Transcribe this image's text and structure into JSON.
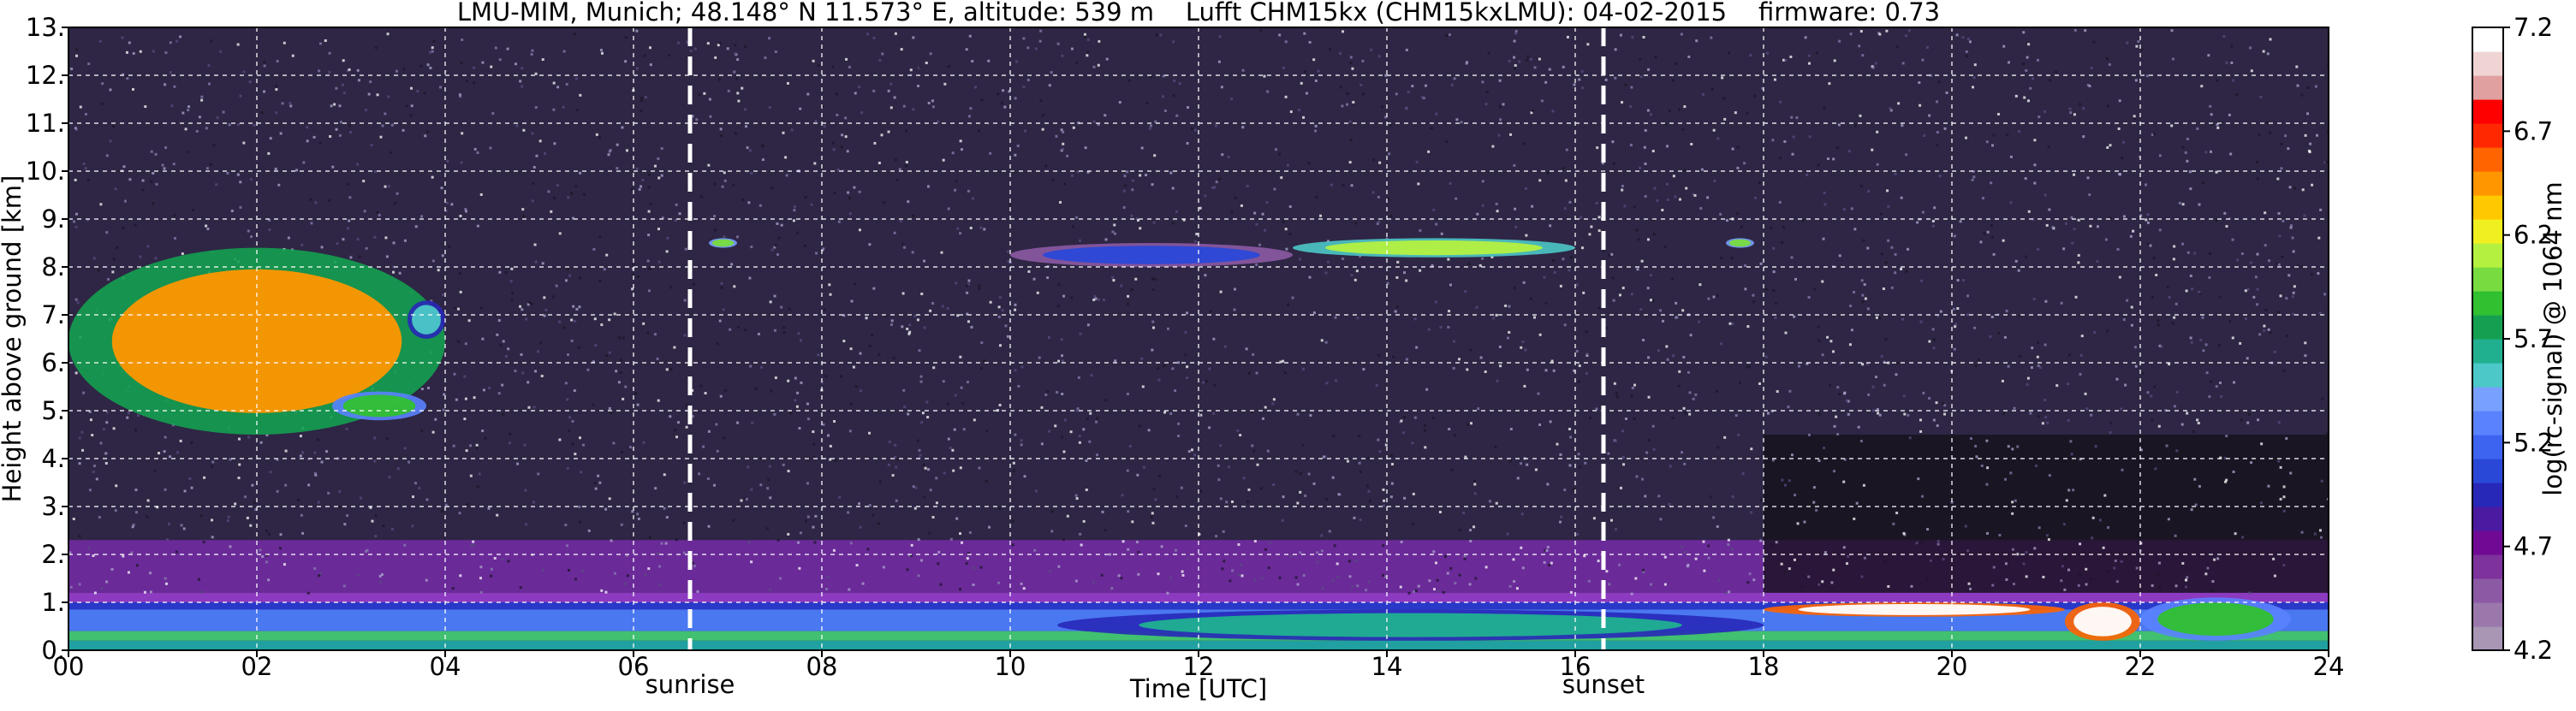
{
  "chart_data": {
    "type": "heatmap",
    "title": "LMU-MIM, Munich; 48.148° N 11.573° E, altitude: 539 m    Lufft CHM15kx (CHM15kxLMU): 04-02-2015    firmware: 0.73",
    "xlabel": "Time [UTC]",
    "ylabel": "Height above ground [km]",
    "colorbar_label": "log(rc-signal) @ 1064 nm",
    "xlim": [
      0,
      24
    ],
    "ylim": [
      0,
      13
    ],
    "x_ticks": [
      {
        "value": 0,
        "label": "00"
      },
      {
        "value": 2,
        "label": "02"
      },
      {
        "value": 4,
        "label": "04"
      },
      {
        "value": 6,
        "label": "06"
      },
      {
        "value": 8,
        "label": "08"
      },
      {
        "value": 10,
        "label": "10"
      },
      {
        "value": 12,
        "label": "12"
      },
      {
        "value": 14,
        "label": "14"
      },
      {
        "value": 16,
        "label": "16"
      },
      {
        "value": 18,
        "label": "18"
      },
      {
        "value": 20,
        "label": "20"
      },
      {
        "value": 22,
        "label": "22"
      },
      {
        "value": 24,
        "label": "24"
      }
    ],
    "y_ticks": [
      {
        "value": 0,
        "label": "0."
      },
      {
        "value": 1,
        "label": "1."
      },
      {
        "value": 2,
        "label": "2."
      },
      {
        "value": 3,
        "label": "3."
      },
      {
        "value": 4,
        "label": "4."
      },
      {
        "value": 5,
        "label": "5."
      },
      {
        "value": 6,
        "label": "6."
      },
      {
        "value": 7,
        "label": "7."
      },
      {
        "value": 8,
        "label": "8."
      },
      {
        "value": 9,
        "label": "9."
      },
      {
        "value": 10,
        "label": "10."
      },
      {
        "value": 11,
        "label": "11."
      },
      {
        "value": 12,
        "label": "12."
      },
      {
        "value": 13,
        "label": "13."
      }
    ],
    "grid": true,
    "markers": [
      {
        "name": "sunrise",
        "x": 6.6
      },
      {
        "name": "sunset",
        "x": 16.3
      }
    ],
    "colorbar": {
      "range": [
        4.2,
        7.2
      ],
      "ticks": [
        {
          "value": 4.2,
          "label": "4.2"
        },
        {
          "value": 4.7,
          "label": "4.7"
        },
        {
          "value": 5.2,
          "label": "5.2"
        },
        {
          "value": 5.7,
          "label": "5.7"
        },
        {
          "value": 6.2,
          "label": "6.2"
        },
        {
          "value": 6.7,
          "label": "6.7"
        },
        {
          "value": 7.2,
          "label": "7.2"
        }
      ],
      "colors": [
        "#a896b4",
        "#9a78ac",
        "#8c5aa4",
        "#7e329c",
        "#700a94",
        "#4a1aa0",
        "#2828b8",
        "#2a48d8",
        "#3c64f0",
        "#5a82ff",
        "#78a0ff",
        "#4cc8c8",
        "#20b090",
        "#14a050",
        "#30c030",
        "#78dc40",
        "#b4f040",
        "#f0f020",
        "#ffc800",
        "#ff9600",
        "#ff6400",
        "#ff2800",
        "#ff0000",
        "#e0a0a0",
        "#f0d4d4",
        "#ffffff"
      ]
    },
    "features": [
      {
        "name": "cirrus",
        "t0": 0.0,
        "t1": 4.0,
        "h0": 4.5,
        "h1": 8.4,
        "level": 6.4
      },
      {
        "name": "cirrus",
        "t0": 2.8,
        "t1": 3.8,
        "h0": 4.8,
        "h1": 5.4,
        "level": 5.9
      },
      {
        "name": "cirrus",
        "t0": 3.6,
        "t1": 4.0,
        "h0": 6.5,
        "h1": 7.3,
        "level": 5.5
      },
      {
        "name": "cirrus",
        "t0": 13.0,
        "t1": 16.0,
        "h0": 8.2,
        "h1": 8.6,
        "level": 6.1
      },
      {
        "name": "cirrus",
        "t0": 10.0,
        "t1": 13.0,
        "h0": 8.0,
        "h1": 8.5,
        "level": 5.1
      },
      {
        "name": "cirrus",
        "t0": 6.8,
        "t1": 7.1,
        "h0": 8.4,
        "h1": 8.6,
        "level": 6.0
      },
      {
        "name": "cirrus",
        "t0": 17.6,
        "t1": 17.9,
        "h0": 8.4,
        "h1": 8.6,
        "level": 6.0
      },
      {
        "name": "low-cloud",
        "t0": 18.0,
        "t1": 21.2,
        "h0": 0.7,
        "h1": 1.0,
        "level": 7.2
      },
      {
        "name": "low-cloud",
        "t0": 21.2,
        "t1": 22.0,
        "h0": 0.2,
        "h1": 1.0,
        "level": 7.2
      },
      {
        "name": "aerosol-layer",
        "t0": 10.5,
        "t1": 18.0,
        "h0": 0.2,
        "h1": 0.85,
        "level": 5.6
      },
      {
        "name": "aerosol-layer",
        "t0": 22.0,
        "t1": 23.6,
        "h0": 0.2,
        "h1": 1.1,
        "level": 5.9
      }
    ]
  }
}
